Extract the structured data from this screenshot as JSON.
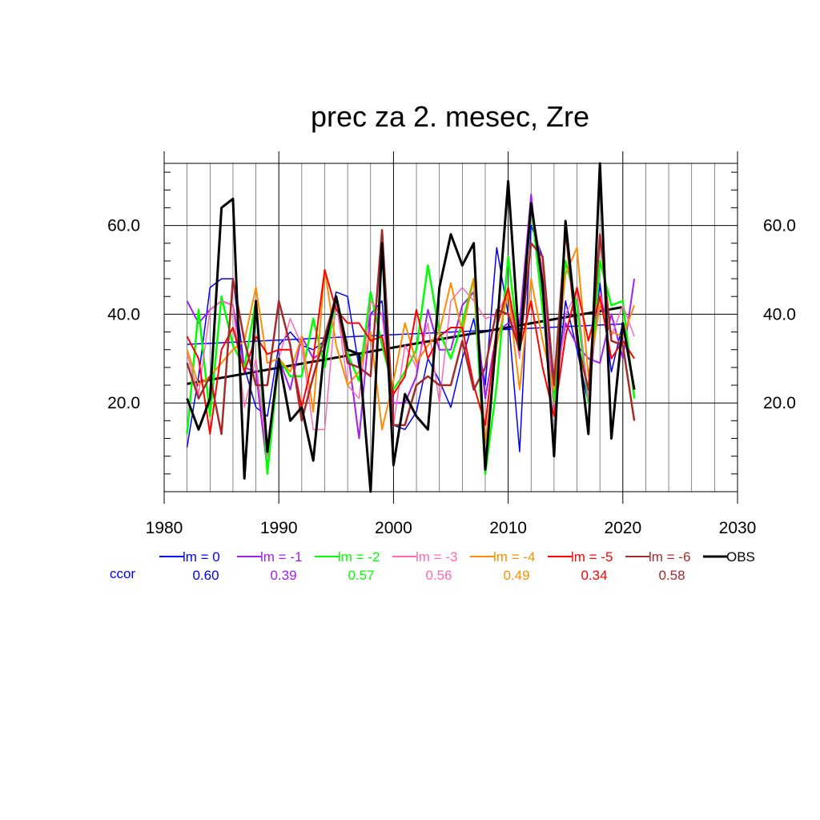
{
  "chart_data": {
    "type": "line",
    "title": "prec za 2. mesec, Zre",
    "xlabel": "",
    "ylabel": "",
    "xlim": [
      1980,
      2030
    ],
    "ylim": [
      0,
      74
    ],
    "x_ticks": [
      1980,
      1990,
      2000,
      2010,
      2020,
      2030
    ],
    "x_tick_labels": [
      "1980",
      "1990",
      "2000",
      "2010",
      "2020",
      "2030"
    ],
    "y_ticks": [
      20,
      40,
      60
    ],
    "y_tick_labels": [
      "20.0",
      "40.0",
      "60.0"
    ],
    "grid": true,
    "legend_position": "bottom",
    "ccor_label": "ccor",
    "ccor_color": "#0000ff",
    "x": [
      1982,
      1983,
      1984,
      1985,
      1986,
      1987,
      1988,
      1989,
      1990,
      1991,
      1992,
      1993,
      1994,
      1995,
      1996,
      1997,
      1998,
      1999,
      2000,
      2001,
      2002,
      2003,
      2004,
      2005,
      2006,
      2007,
      2008,
      2009,
      2010,
      2011,
      2012,
      2013,
      2014,
      2015,
      2016,
      2017,
      2018,
      2019,
      2020,
      2021
    ],
    "series": [
      {
        "name": "lm = 0",
        "color": "#0000ff",
        "width": 1.5,
        "ccor": "0.60",
        "values": [
          10,
          26,
          46,
          48,
          48,
          28,
          19,
          17,
          33,
          36,
          33,
          32,
          34,
          45,
          44,
          28,
          40,
          43,
          15,
          14,
          18,
          30,
          25,
          19,
          30,
          39,
          24,
          55,
          40,
          9,
          60,
          53,
          17,
          43,
          32,
          20,
          47,
          27,
          38,
          22
        ],
        "trend": [
          33.2,
          37.8
        ]
      },
      {
        "name": "lm = -1",
        "color": "#a020f0",
        "width": 2,
        "ccor": "0.39",
        "values": [
          43,
          38,
          41,
          43,
          42,
          28,
          27,
          5,
          30,
          23,
          35,
          30,
          32,
          43,
          32,
          12,
          40,
          40,
          20,
          20,
          26,
          41,
          32,
          32,
          42,
          45,
          21,
          36,
          38,
          38,
          67,
          43,
          22,
          38,
          33,
          30,
          29,
          40,
          30,
          48
        ],
        "trend": null
      },
      {
        "name": "lm = -2",
        "color": "#00ff00",
        "width": 2.5,
        "ccor": "0.57",
        "values": [
          13,
          41,
          17,
          44,
          33,
          28,
          43,
          4,
          30,
          26,
          26,
          39,
          28,
          44,
          31,
          25,
          45,
          33,
          23,
          27,
          32,
          51,
          36,
          30,
          38,
          48,
          4,
          24,
          53,
          31,
          65,
          41,
          20,
          52,
          42,
          20,
          52,
          42,
          43,
          21
        ],
        "trend": null
      },
      {
        "name": "lm = -3",
        "color": "#ff69b4",
        "width": 1.5,
        "ccor": "0.56",
        "values": [
          31,
          22,
          41,
          43,
          42,
          19,
          30,
          8,
          30,
          39,
          33,
          14,
          14,
          43,
          24,
          21,
          43,
          40,
          15,
          33,
          28,
          38,
          20,
          43,
          46,
          43,
          39,
          40,
          45,
          30,
          65,
          50,
          17,
          40,
          45,
          21,
          45,
          35,
          42,
          35
        ],
        "trend": null
      },
      {
        "name": "lm = -4",
        "color": "#ff8c00",
        "width": 2,
        "ccor": "0.49",
        "values": [
          32,
          24,
          26,
          29,
          32,
          34,
          46,
          29,
          30,
          27,
          35,
          18,
          50,
          33,
          24,
          27,
          36,
          14,
          25,
          38,
          29,
          33,
          36,
          47,
          36,
          48,
          11,
          33,
          45,
          23,
          48,
          34,
          23,
          49,
          55,
          26,
          42,
          36,
          35,
          42
        ],
        "trend": null
      },
      {
        "name": "lm = -5",
        "color": "#ff0000",
        "width": 2,
        "ccor": "0.34",
        "values": [
          35,
          30,
          13,
          32,
          37,
          27,
          35,
          31,
          32,
          32,
          19,
          30,
          50,
          41,
          38,
          38,
          34,
          35,
          22,
          26,
          41,
          30,
          35,
          37,
          37,
          24,
          15,
          37,
          46,
          32,
          43,
          28,
          17,
          35,
          46,
          34,
          44,
          30,
          34,
          30
        ],
        "trend": null
      },
      {
        "name": "lm = -6",
        "color": "#a52a2a",
        "width": 2.5,
        "ccor": "0.58",
        "values": [
          29,
          21,
          26,
          13,
          48,
          34,
          24,
          24,
          43,
          33,
          16,
          26,
          35,
          44,
          29,
          28,
          26,
          59,
          15,
          15,
          24,
          26,
          24,
          24,
          34,
          23,
          28,
          41,
          40,
          32,
          56,
          53,
          24,
          59,
          34,
          23,
          58,
          34,
          33,
          16
        ],
        "trend": null
      },
      {
        "name": "OBS",
        "color": "#000000",
        "width": 3,
        "ccor": "",
        "values": [
          21,
          14,
          21,
          64,
          66,
          3,
          43,
          9,
          30,
          16,
          19,
          7,
          33,
          44,
          32,
          31,
          0,
          56,
          6,
          22,
          17,
          14,
          46,
          58,
          51,
          56,
          5,
          36,
          70,
          32,
          65,
          47,
          8,
          61,
          36,
          13,
          74,
          12,
          38,
          23
        ],
        "trend": [
          24.3,
          41.6
        ]
      }
    ]
  }
}
